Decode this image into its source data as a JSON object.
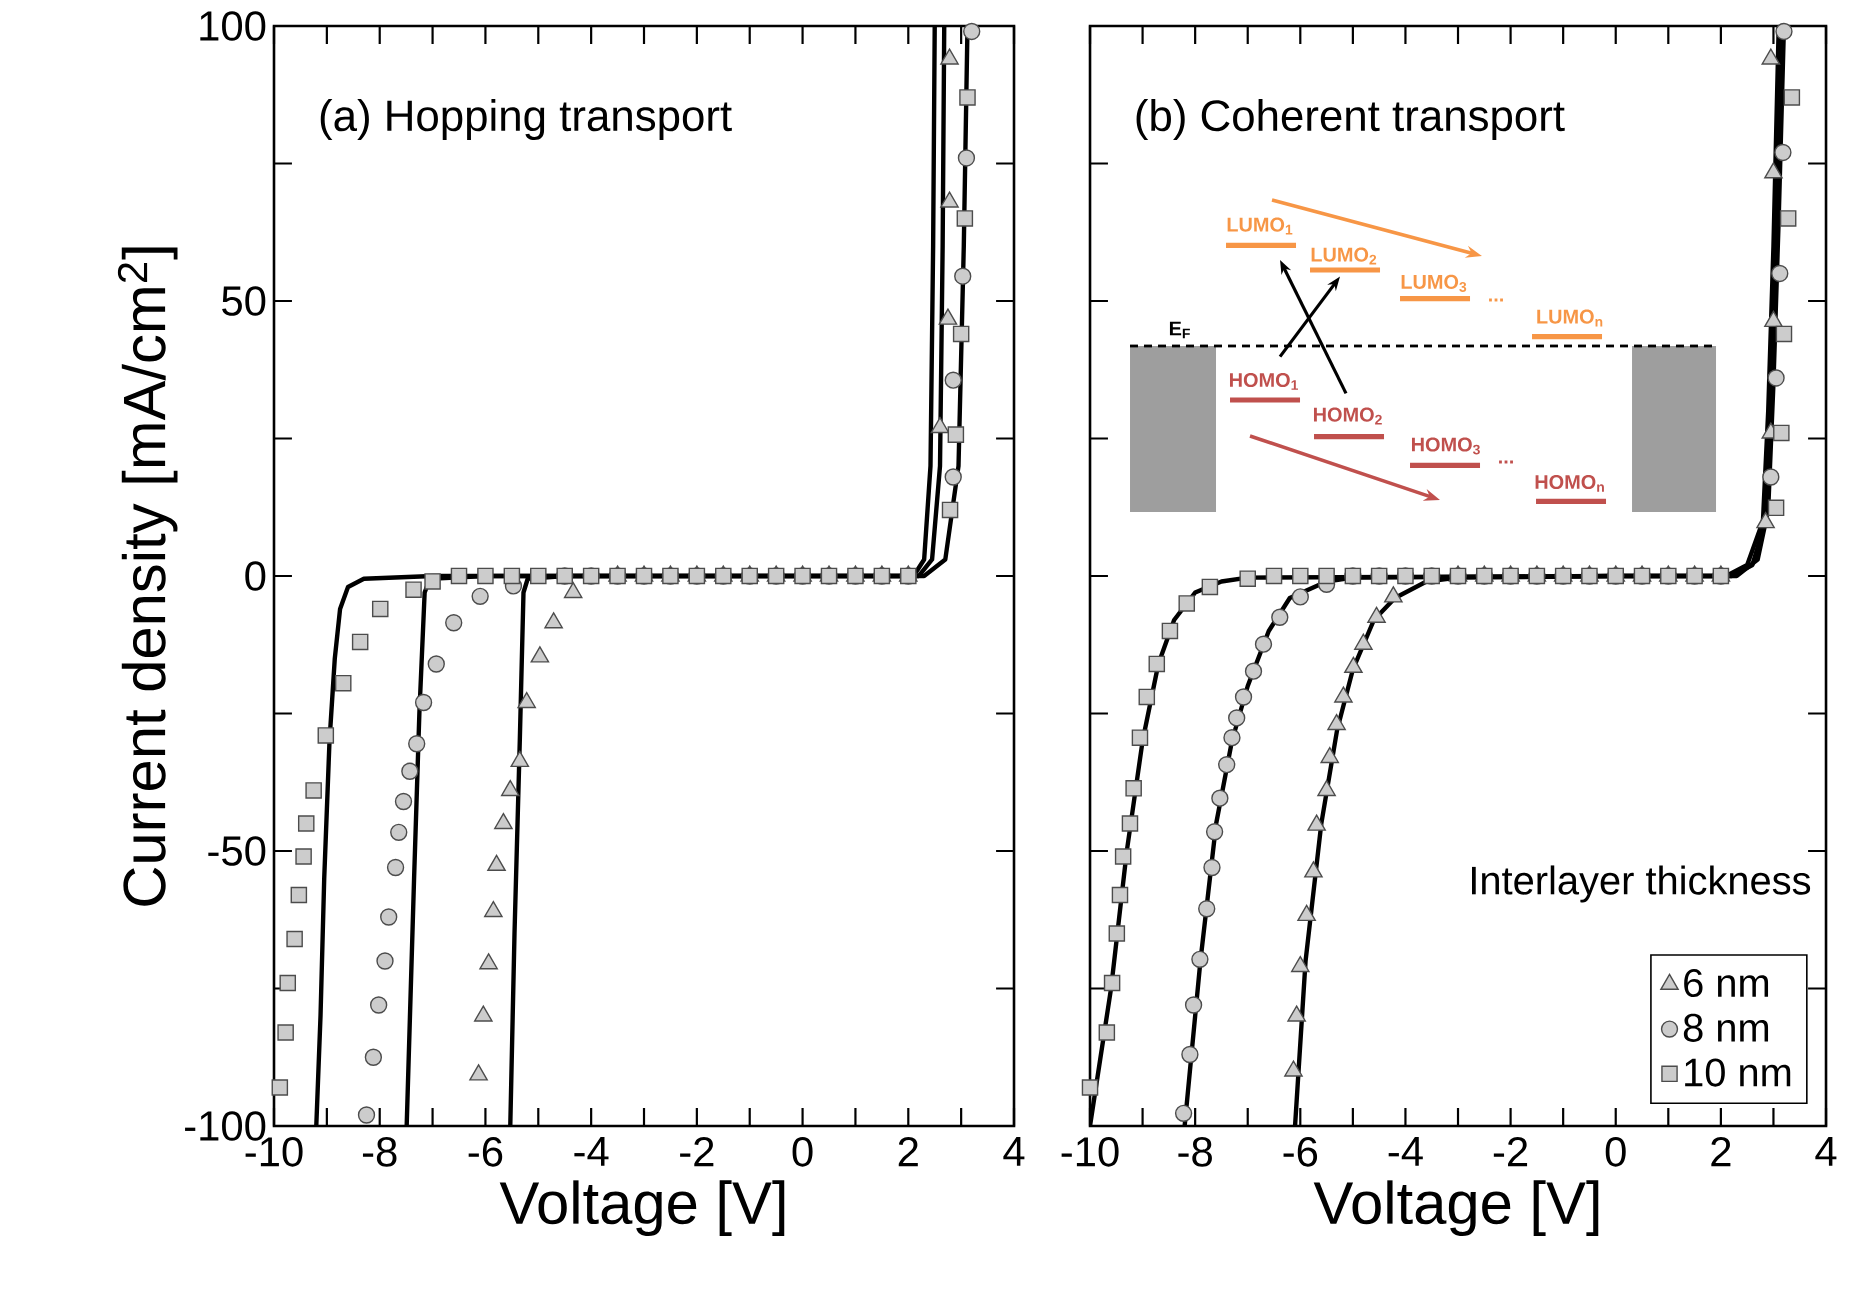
{
  "chart_data": [
    {
      "type": "scatter",
      "title": "(a) Hopping transport",
      "xlabel": "Voltage [V]",
      "ylabel": "Current density [mA/cm$^{2}$]",
      "xlim": [
        -10,
        4
      ],
      "ylim": [
        -100,
        100
      ],
      "xticks": [
        -10,
        {
          "value": -9,
          "label": null
        },
        -8,
        {
          "value": -7,
          "label": null
        },
        -6,
        {
          "value": -5,
          "label": null
        },
        -4,
        {
          "value": -3,
          "label": null
        },
        -2,
        {
          "value": -1,
          "label": null
        },
        0,
        {
          "value": 1,
          "label": null
        },
        2,
        {
          "value": 3,
          "label": null
        },
        4
      ],
      "yticks": [
        -100,
        {
          "value": -75,
          "label": null
        },
        -50,
        {
          "value": -25,
          "label": null
        },
        0,
        {
          "value": 25,
          "label": null
        },
        50,
        {
          "value": 75,
          "label": null
        },
        100
      ],
      "legend": false,
      "series": [
        {
          "marker": "triangle",
          "color": "#cccccc",
          "x": [
            -6.13,
            -6.04,
            -5.94,
            -5.85,
            -5.79,
            -5.66,
            -5.53,
            -5.35,
            -5.22,
            -4.97,
            -4.71,
            -4.34,
            -4.0,
            -3.5,
            -3,
            -2.5,
            -2,
            -1.5,
            -1,
            -0.5,
            0,
            0.5,
            1,
            1.5,
            2,
            2.6,
            2.75,
            2.78,
            2.78
          ],
          "values": [
            -90.7,
            -80,
            -70.5,
            -61,
            -52.6,
            -45,
            -39,
            -33.7,
            -23,
            -14.7,
            -8.5,
            -3,
            null,
            0,
            0,
            0,
            0,
            0,
            0,
            0,
            0,
            0,
            0,
            0,
            0,
            27,
            46.7,
            68,
            94
          ]
        },
        {
          "marker": "circle",
          "color": "#cccccc",
          "x": [
            -8.25,
            -8.12,
            -8.02,
            -7.9,
            -7.83,
            -7.7,
            -7.64,
            -7.55,
            -7.43,
            -7.3,
            -7.17,
            -6.93,
            -6.6,
            -6.1,
            -5.47,
            -5,
            -4.5,
            -4,
            -3.5,
            -3,
            -2.5,
            -2,
            -1.5,
            -1,
            -0.5,
            0,
            0.5,
            1,
            1.5,
            2,
            2.85,
            2.85,
            3.03,
            3.1,
            3.2
          ],
          "values": [
            -98,
            -87.5,
            -78,
            -70,
            -62,
            -53,
            -46.6,
            -41,
            -35.5,
            -30.5,
            -23,
            -16,
            -8.5,
            -3.7,
            -1.8,
            null,
            0,
            0,
            0,
            0,
            0,
            0,
            0,
            0,
            0,
            0,
            0,
            0,
            0,
            0,
            18,
            35.6,
            54.5,
            76,
            99
          ]
        },
        {
          "marker": "square",
          "color": "#cccccc",
          "x": [
            -9.89,
            -9.78,
            -9.74,
            -9.61,
            -9.53,
            -9.44,
            -9.39,
            -9.25,
            -9.02,
            -8.69,
            -8.37,
            -7.99,
            -7.36,
            -7,
            -6.5,
            -6,
            -5.5,
            -5,
            -4.5,
            -4,
            -3.5,
            -3,
            -2.5,
            -2,
            -1.5,
            -1,
            -0.5,
            0,
            0.5,
            1,
            1.5,
            2,
            2.79,
            2.9,
            3.0,
            3.07,
            3.12
          ],
          "values": [
            -93,
            -83,
            -74,
            -66,
            -58,
            -51,
            -45,
            -39,
            -29,
            -19.5,
            -12,
            -6,
            -2.5,
            -1,
            0,
            0,
            0,
            0,
            0,
            0,
            0,
            0,
            0,
            0,
            0,
            0,
            0,
            0,
            0,
            0,
            0,
            0,
            12,
            25.7,
            44,
            65,
            87
          ]
        },
        {
          "type": "line",
          "marker": "none",
          "color": "#000000",
          "x": [
            -5.53,
            -5.45,
            -5.35,
            -5.28,
            -5.2,
            -4.5,
            0,
            2.1,
            2.3,
            2.42,
            2.47,
            2.5
          ],
          "values": [
            -100,
            -65,
            -30,
            -3,
            -0.5,
            0,
            0,
            0,
            3,
            20,
            60,
            100
          ]
        },
        {
          "type": "line",
          "marker": "none",
          "color": "#000000",
          "x": [
            -7.49,
            -7.35,
            -7.25,
            -7.15,
            -7.05,
            -6,
            0,
            2.2,
            2.45,
            2.6,
            2.65,
            2.68
          ],
          "values": [
            -100,
            -55,
            -25,
            -3,
            -0.5,
            0,
            0,
            0,
            3,
            20,
            60,
            100
          ]
        },
        {
          "type": "line",
          "marker": "none",
          "color": "#000000",
          "x": [
            -9.2,
            -9.12,
            -9.05,
            -8.95,
            -8.85,
            -8.75,
            -8.6,
            -8.3,
            -7,
            0,
            2.3,
            2.7,
            2.95,
            3.05,
            3.12
          ],
          "values": [
            -100,
            -80,
            -55,
            -30,
            -15,
            -6,
            -2,
            -0.5,
            0,
            0,
            0,
            3,
            20,
            60,
            100
          ]
        }
      ]
    },
    {
      "type": "scatter",
      "title": "(b) Coherent transport",
      "xlabel": "Voltage [V]",
      "xlim": [
        -10,
        4
      ],
      "ylim": [
        -100,
        100
      ],
      "tick_labels": "x",
      "xticks": [
        -10,
        {
          "value": -9,
          "label": null
        },
        -8,
        {
          "value": -7,
          "label": null
        },
        -6,
        {
          "value": -5,
          "label": null
        },
        -4,
        {
          "value": -3,
          "label": null
        },
        -2,
        {
          "value": -1,
          "label": null
        },
        0,
        {
          "value": 1,
          "label": null
        },
        2,
        {
          "value": 3,
          "label": null
        },
        4
      ],
      "yticks": [
        {
          "value": -100,
          "label": null
        },
        {
          "value": -75,
          "label": null
        },
        {
          "value": -50,
          "label": null
        },
        {
          "value": -25,
          "label": null
        },
        {
          "value": 0,
          "label": null
        },
        {
          "value": 25,
          "label": null
        },
        {
          "value": 50,
          "label": null
        },
        {
          "value": 75,
          "label": null
        },
        {
          "value": 100,
          "label": null
        }
      ],
      "legend": "bottom right",
      "legend_title": "Interlayer thickness",
      "annotations": [
        "E$_{F}$",
        "LUMO$_{1}$",
        "LUMO$_{2}$",
        "LUMO$_{3}$",
        "...",
        "LUMO$_{n}$",
        "HOMO$_{1}$",
        "HOMO$_{2}$",
        "HOMO$_{3}$",
        "...",
        "HOMO$_{n}$"
      ],
      "series": [
        {
          "name": "6 nm",
          "marker": "triangle",
          "color": "#cccccc",
          "x": [
            -6.13,
            -6.07,
            -6.0,
            -5.88,
            -5.75,
            -5.69,
            -5.5,
            -5.44,
            -5.31,
            -5.18,
            -4.99,
            -4.8,
            -4.55,
            -4.23,
            -3.5,
            -3,
            -2.5,
            -2,
            -1.5,
            -1,
            -0.5,
            0,
            0.5,
            1,
            1.5,
            2,
            2.85,
            2.95,
            3.0,
            3.0,
            2.95
          ],
          "values": [
            -90,
            -80,
            -71,
            -61.7,
            -53.8,
            -45.3,
            -39,
            -33,
            -27,
            -22,
            -16.6,
            -12.4,
            -7.5,
            -3.8,
            null,
            0,
            0,
            0,
            0,
            0,
            0,
            0,
            0,
            0,
            0,
            0,
            9.7,
            26,
            46.3,
            73.3,
            94
          ]
        },
        {
          "name": "8 nm",
          "marker": "circle",
          "color": "#cccccc",
          "x": [
            -8.22,
            -8.1,
            -8.03,
            -7.91,
            -7.78,
            -7.68,
            -7.63,
            -7.53,
            -7.4,
            -7.3,
            -7.21,
            -7.08,
            -6.89,
            -6.7,
            -6.39,
            -6.0,
            -5.5,
            -5,
            -4.5,
            -4,
            -3.5,
            -3,
            -2.5,
            -2,
            -1.5,
            -1,
            -0.5,
            0,
            0.5,
            1,
            1.5,
            2,
            2.95,
            3.05,
            3.12,
            3.18,
            3.2
          ],
          "values": [
            -97.7,
            -87,
            -78,
            -69.7,
            -60.5,
            -53,
            -46.5,
            -40.4,
            -34.3,
            -29.4,
            -25.8,
            -22,
            -17.3,
            -12.4,
            -7.5,
            -3.8,
            -1.5,
            0,
            0,
            0,
            0,
            0,
            0,
            0,
            0,
            0,
            0,
            0,
            0,
            0,
            0,
            0,
            18,
            36,
            55,
            77,
            99
          ]
        },
        {
          "name": "10 nm",
          "marker": "square",
          "color": "#cccccc",
          "x": [
            -10.0,
            -9.68,
            -9.58,
            -9.49,
            -9.43,
            -9.37,
            -9.24,
            -9.17,
            -9.05,
            -8.92,
            -8.73,
            -8.48,
            -8.16,
            -7.72,
            -7.0,
            -6.5,
            -6,
            -5.5,
            -5,
            -4.5,
            -4,
            -3.5,
            -3,
            -2.5,
            -2,
            -1.5,
            -1,
            -0.5,
            0,
            0.5,
            1,
            1.5,
            2,
            3.05,
            3.15,
            3.2,
            3.28,
            3.35
          ],
          "values": [
            -93,
            -83,
            -74,
            -65,
            -58,
            -51,
            -45,
            -38.6,
            -29.4,
            -22,
            -16,
            -10,
            -5,
            -2,
            -0.5,
            0,
            0,
            0,
            0,
            0,
            0,
            0,
            0,
            0,
            0,
            0,
            0,
            0,
            0,
            0,
            0,
            0,
            0,
            12.4,
            26,
            44,
            65,
            87
          ]
        },
        {
          "type": "line",
          "marker": "none",
          "color": "#000000",
          "x": [
            -6.1,
            -5.9,
            -5.6,
            -5.3,
            -5.0,
            -4.6,
            -4.2,
            -3.6,
            -3,
            0,
            2.1,
            2.5,
            2.8,
            2.9,
            3.0,
            3.1
          ],
          "values": [
            -100,
            -70,
            -45,
            -28,
            -17,
            -8,
            -4,
            -1,
            -0.3,
            0,
            0,
            2,
            10,
            30,
            60,
            100
          ]
        },
        {
          "type": "line",
          "marker": "none",
          "color": "#000000",
          "x": [
            -8.2,
            -7.9,
            -7.6,
            -7.3,
            -7.0,
            -6.6,
            -6.2,
            -5.5,
            -5,
            0,
            2.2,
            2.6,
            2.85,
            2.95,
            3.05,
            3.15
          ],
          "values": [
            -100,
            -70,
            -45,
            -30,
            -20,
            -10,
            -4,
            -1,
            -0.3,
            0,
            0,
            2,
            10,
            30,
            60,
            100
          ]
        },
        {
          "type": "line",
          "marker": "none",
          "color": "#000000",
          "x": [
            -10,
            -9.6,
            -9.3,
            -9.0,
            -8.7,
            -8.4,
            -8.0,
            -7.5,
            -7,
            0,
            2.3,
            2.7,
            2.9,
            3.0,
            3.1,
            3.2
          ],
          "values": [
            -100,
            -75,
            -50,
            -30,
            -16,
            -8,
            -3,
            -1,
            -0.3,
            0,
            0,
            3,
            12,
            35,
            65,
            100
          ]
        }
      ]
    }
  ]
}
